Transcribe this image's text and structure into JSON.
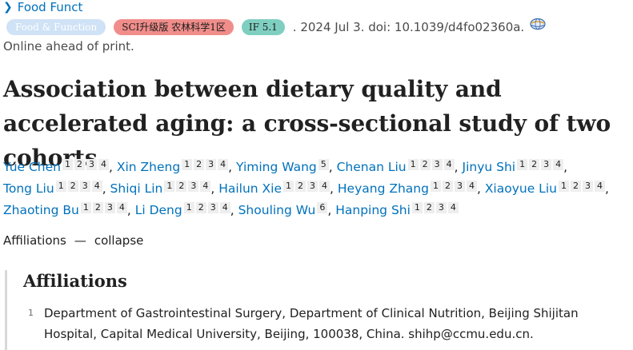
{
  "journal": {
    "name": "Food Funct"
  },
  "badges": {
    "journal": "Food & Function",
    "sci": "SCI升级版 农林科学1区",
    "if": "IF 5.1"
  },
  "citation": ". 2024 Jul 3. doi: 10.1039/d4fo02360a.",
  "status": "Online ahead of print.",
  "title": "Association between dietary quality and accelerated aging: a cross-sectional study of two cohorts",
  "authors": [
    {
      "name": "Yue Chen",
      "affs": [
        "1",
        "2",
        "3",
        "4"
      ]
    },
    {
      "name": "Xin Zheng",
      "affs": [
        "1",
        "2",
        "3",
        "4"
      ]
    },
    {
      "name": "Yiming Wang",
      "affs": [
        "5"
      ]
    },
    {
      "name": "Chenan Liu",
      "affs": [
        "1",
        "2",
        "3",
        "4"
      ]
    },
    {
      "name": "Jinyu Shi",
      "affs": [
        "1",
        "2",
        "3",
        "4"
      ]
    },
    {
      "name": "Tong Liu",
      "affs": [
        "1",
        "2",
        "3",
        "4"
      ]
    },
    {
      "name": "Shiqi Lin",
      "affs": [
        "1",
        "2",
        "3",
        "4"
      ]
    },
    {
      "name": "Hailun Xie",
      "affs": [
        "1",
        "2",
        "3",
        "4"
      ]
    },
    {
      "name": "Heyang Zhang",
      "affs": [
        "1",
        "2",
        "3",
        "4"
      ]
    },
    {
      "name": "Xiaoyue Liu",
      "affs": [
        "1",
        "2",
        "3",
        "4"
      ]
    },
    {
      "name": "Zhaoting Bu",
      "affs": [
        "1",
        "2",
        "3",
        "4"
      ]
    },
    {
      "name": "Li Deng",
      "affs": [
        "1",
        "2",
        "3",
        "4"
      ]
    },
    {
      "name": "Shouling Wu",
      "affs": [
        "6"
      ]
    },
    {
      "name": "Hanping Shi",
      "affs": [
        "1",
        "2",
        "3",
        "4"
      ]
    }
  ],
  "affiliations_toggle": {
    "label": "Affiliations",
    "dash": "—",
    "action": "collapse"
  },
  "affiliations": {
    "heading": "Affiliations",
    "items": [
      {
        "num": "1",
        "text": "Department of Gastrointestinal Surgery, Department of Clinical Nutrition, Beijing Shijitan Hospital, Capital Medical University, Beijing, 100038, China. shihp@ccmu.edu.cn."
      }
    ]
  }
}
